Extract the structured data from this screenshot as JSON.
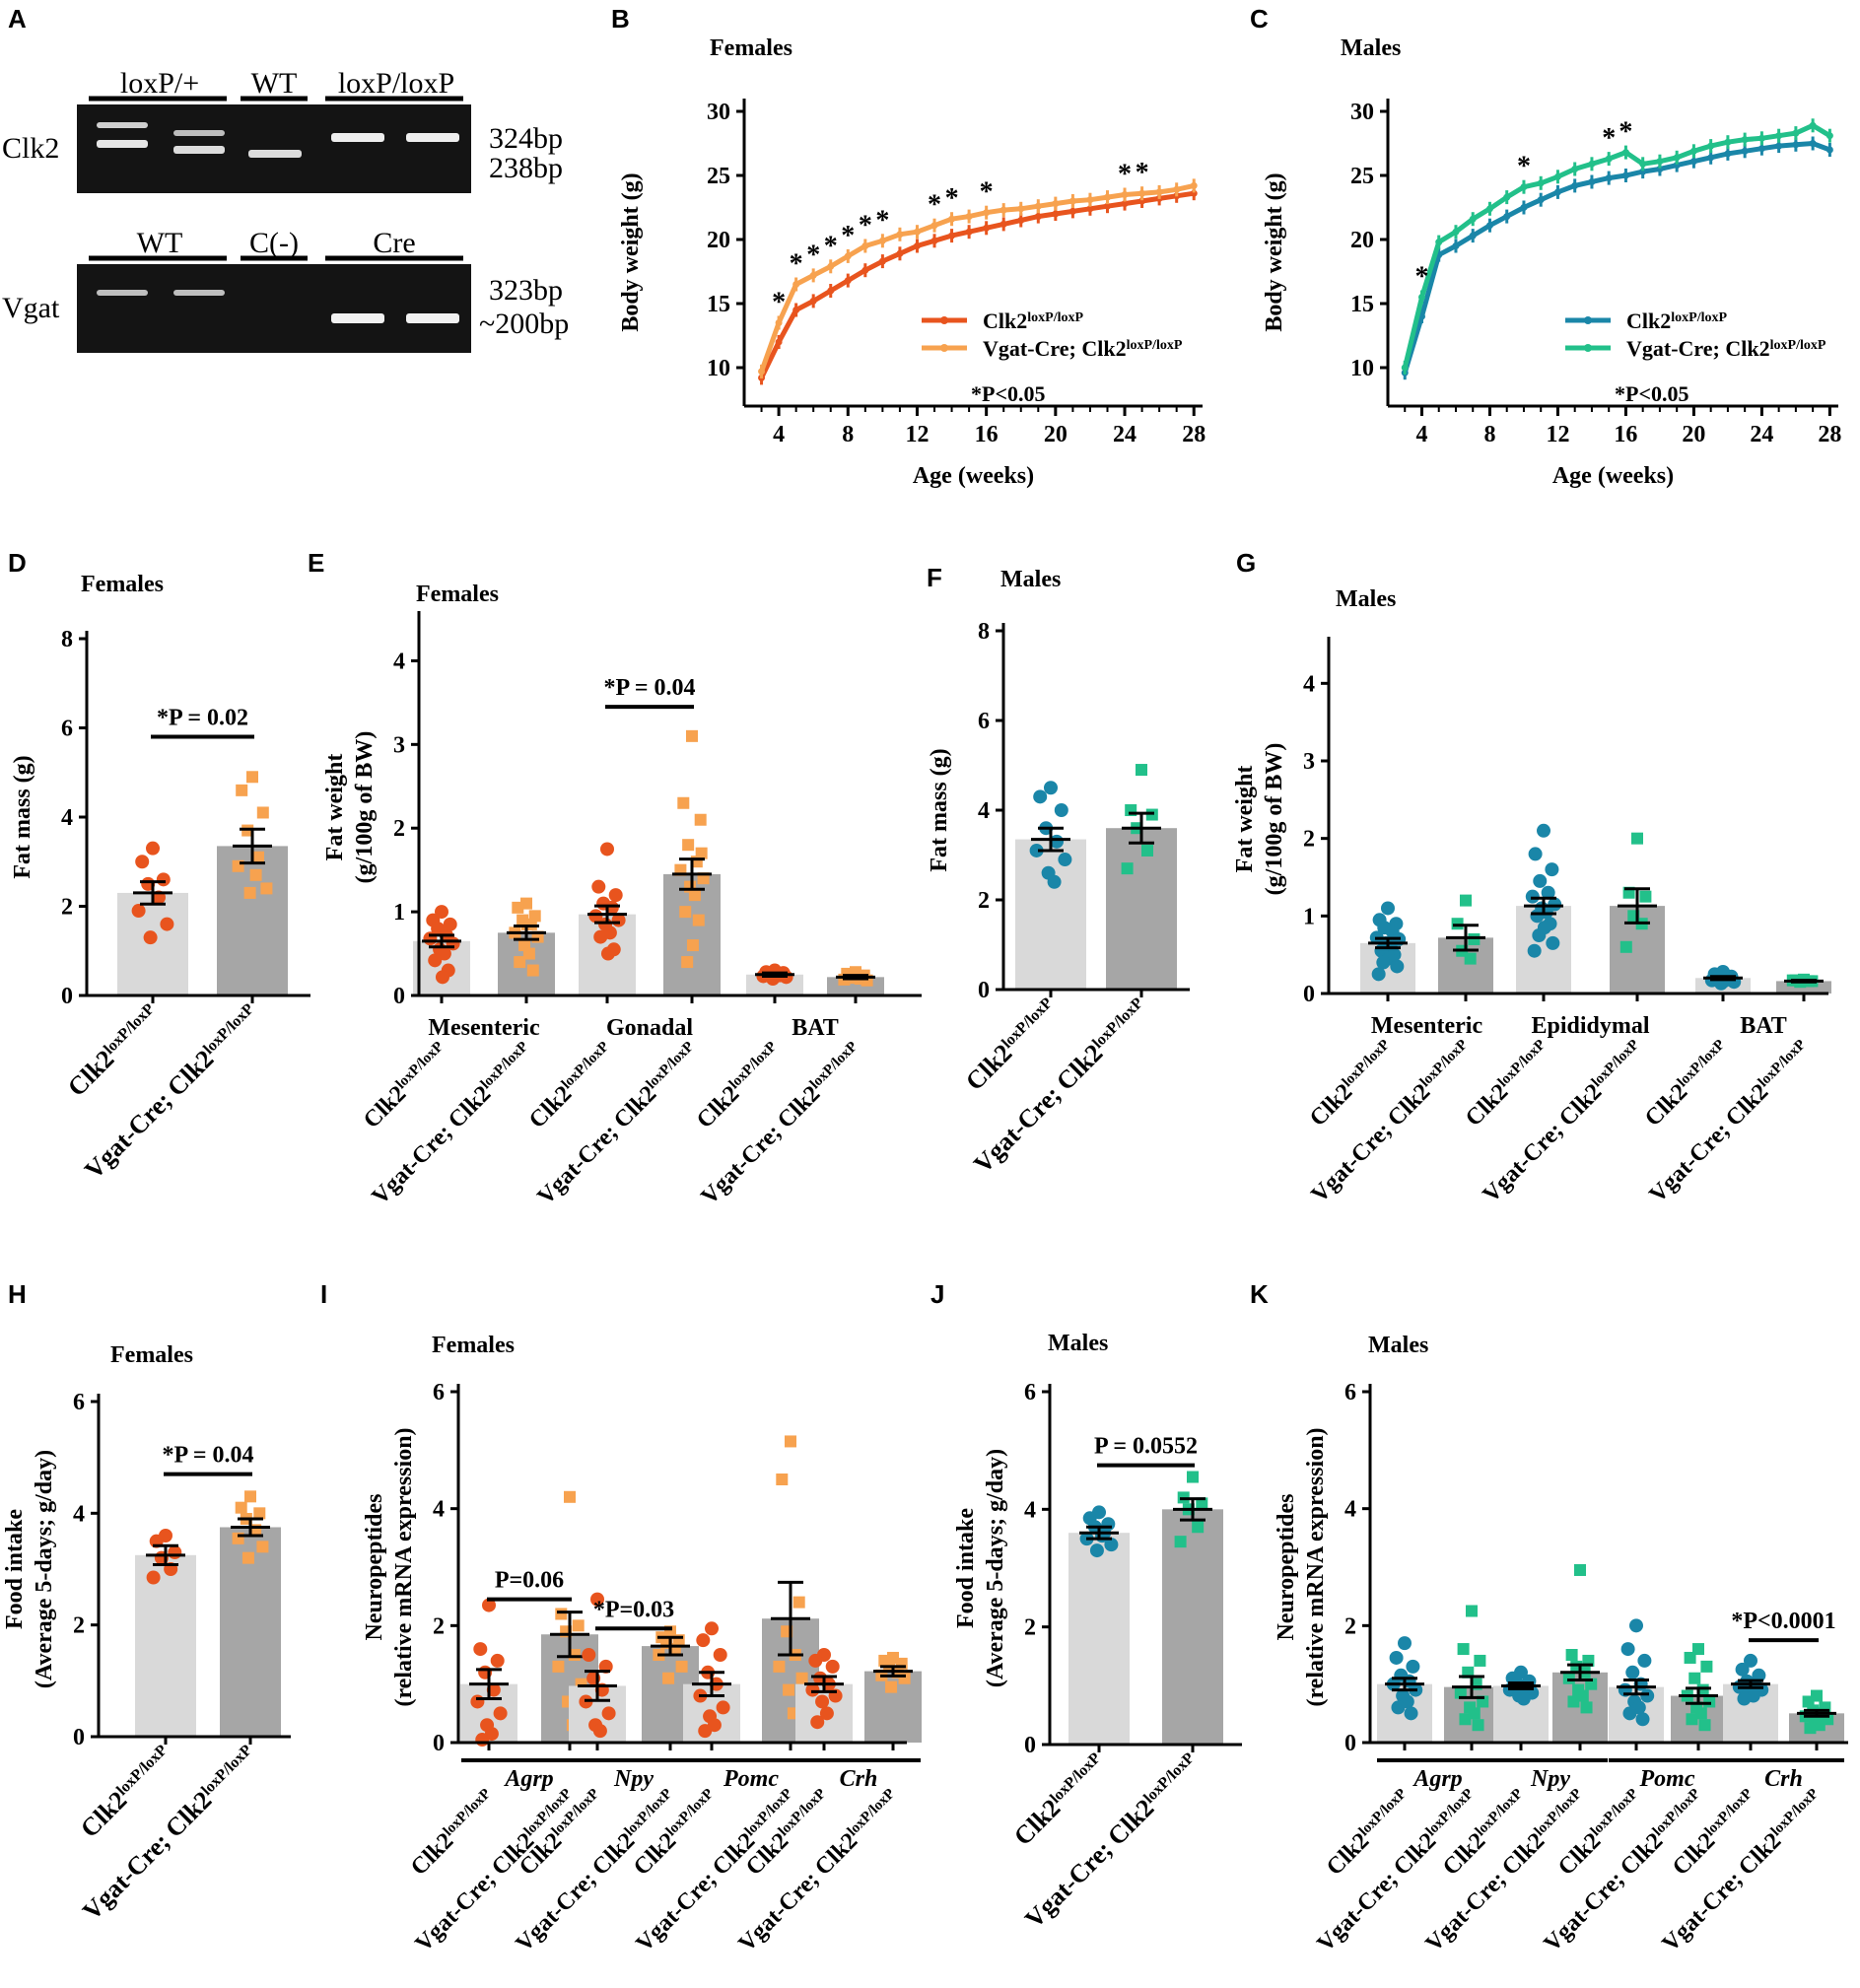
{
  "colors": {
    "female_control": "#E8541E",
    "female_ko": "#F7A24F",
    "male_control": "#1A86A8",
    "male_ko": "#22C08A",
    "bar_control": "#D9D9D9",
    "bar_ko": "#A6A6A6",
    "axis": "#000000"
  },
  "genotypes": {
    "control": "Clk2",
    "ko_prefix": "Vgat-Cre; Clk2",
    "sup": "loxP/loxP"
  },
  "panelA": {
    "label": "A",
    "gel1": {
      "row_label": "Clk2",
      "groups": [
        "loxP/+",
        "WT",
        "loxP/loxP"
      ],
      "sizes": [
        "324bp",
        "238bp"
      ]
    },
    "gel2": {
      "row_label": "Vgat",
      "groups": [
        "WT",
        "C(-)",
        "Cre"
      ],
      "sizes": [
        "323bp",
        "~200bp"
      ]
    }
  },
  "chart_data": [
    {
      "panel": "B",
      "type": "line",
      "title": "Females",
      "xlabel": "Age (weeks)",
      "ylabel": "Body weight (g)",
      "xlim": [
        2,
        28.5
      ],
      "ylim": [
        7,
        31
      ],
      "xticks": [
        4,
        8,
        12,
        16,
        20,
        24,
        28
      ],
      "yticks": [
        10,
        15,
        20,
        25,
        30
      ],
      "x": [
        3,
        4,
        5,
        6,
        7,
        8,
        9,
        10,
        11,
        12,
        13,
        14,
        15,
        16,
        17,
        18,
        19,
        20,
        21,
        22,
        23,
        24,
        25,
        26,
        27,
        28
      ],
      "series": [
        {
          "name": "Clk2 loxP/loxP",
          "values": [
            9.2,
            12.0,
            14.5,
            15.2,
            16.0,
            16.8,
            17.6,
            18.3,
            18.9,
            19.5,
            19.9,
            20.3,
            20.6,
            20.9,
            21.2,
            21.5,
            21.8,
            22.0,
            22.2,
            22.4,
            22.6,
            22.8,
            23.0,
            23.2,
            23.4,
            23.6
          ]
        },
        {
          "name": "Vgat-Cre; Clk2 loxP/loxP",
          "values": [
            9.7,
            13.5,
            16.5,
            17.2,
            17.9,
            18.7,
            19.5,
            19.9,
            20.4,
            20.6,
            21.1,
            21.6,
            21.8,
            22.1,
            22.3,
            22.4,
            22.6,
            22.8,
            23.0,
            23.1,
            23.3,
            23.5,
            23.6,
            23.7,
            23.9,
            24.2
          ]
        }
      ],
      "significance": {
        "symbol": "*",
        "x": [
          4,
          5,
          6,
          7,
          8,
          9,
          10,
          13,
          14,
          16,
          24,
          25
        ]
      },
      "annotation": "*P<0.05"
    },
    {
      "panel": "C",
      "type": "line",
      "title": "Males",
      "xlabel": "Age (weeks)",
      "ylabel": "Body weight (g)",
      "xlim": [
        2,
        28.5
      ],
      "ylim": [
        7,
        31
      ],
      "xticks": [
        4,
        8,
        12,
        16,
        20,
        24,
        28
      ],
      "yticks": [
        10,
        15,
        20,
        25,
        30
      ],
      "x": [
        3,
        4,
        5,
        6,
        7,
        8,
        9,
        10,
        11,
        12,
        13,
        14,
        15,
        16,
        17,
        18,
        19,
        20,
        21,
        22,
        23,
        24,
        25,
        26,
        27,
        28
      ],
      "series": [
        {
          "name": "Clk2 loxP/loxP",
          "values": [
            9.6,
            14.0,
            18.8,
            19.5,
            20.3,
            21.1,
            21.8,
            22.5,
            23.1,
            23.7,
            24.2,
            24.5,
            24.8,
            25.0,
            25.3,
            25.5,
            25.8,
            26.1,
            26.4,
            26.7,
            26.9,
            27.1,
            27.3,
            27.4,
            27.5,
            27.0
          ]
        },
        {
          "name": "Vgat-Cre; Clk2 loxP/loxP",
          "values": [
            10.0,
            15.5,
            19.8,
            20.6,
            21.6,
            22.4,
            23.3,
            24.1,
            24.4,
            24.9,
            25.5,
            25.9,
            26.3,
            26.8,
            25.9,
            26.1,
            26.4,
            26.9,
            27.3,
            27.6,
            27.8,
            27.9,
            28.1,
            28.3,
            28.9,
            28.1
          ]
        }
      ],
      "significance": {
        "symbol": "*",
        "x": [
          4,
          10,
          15,
          16
        ]
      },
      "annotation": "*P<0.05"
    },
    {
      "panel": "D",
      "type": "bar",
      "title": "Females",
      "ylabel": "Fat mass (g)",
      "ylim": [
        0,
        8
      ],
      "yticks": [
        0,
        2,
        4,
        6,
        8
      ],
      "bars": [
        {
          "genotype": "control",
          "mean": 2.3,
          "sem": 0.25,
          "points": [
            3.3,
            3.0,
            2.6,
            2.5,
            2.2,
            1.9,
            1.6,
            1.3
          ]
        },
        {
          "genotype": "ko",
          "mean": 3.35,
          "sem": 0.38,
          "points": [
            4.9,
            4.6,
            4.1,
            3.7,
            3.1,
            2.9,
            2.4,
            2.3,
            2.7
          ]
        }
      ],
      "comparisons": [
        {
          "from": 0,
          "to": 1,
          "y": 5.8,
          "label": "*P = 0.02"
        }
      ]
    },
    {
      "panel": "E",
      "type": "bar",
      "title": "Females",
      "ylabel": "Fat weight",
      "ylabel2": "(g/100g of BW)",
      "ylim": [
        0,
        4.5
      ],
      "yticks": [
        0,
        1,
        2,
        3,
        4
      ],
      "groups": [
        "Mesenteric",
        "Gonadal",
        "BAT"
      ],
      "bars": [
        {
          "genotype": "control",
          "group": 0,
          "mean": 0.65,
          "sem": 0.07,
          "points": [
            1.0,
            0.9,
            0.85,
            0.8,
            0.72,
            0.68,
            0.62,
            0.55,
            0.5,
            0.42,
            0.3,
            0.22
          ]
        },
        {
          "genotype": "ko",
          "group": 0,
          "mean": 0.75,
          "sem": 0.08,
          "points": [
            1.1,
            1.05,
            0.95,
            0.9,
            0.85,
            0.75,
            0.7,
            0.6,
            0.5,
            0.4,
            0.3,
            0.85
          ]
        },
        {
          "genotype": "control",
          "group": 1,
          "mean": 0.97,
          "sem": 0.1,
          "points": [
            1.75,
            1.3,
            1.2,
            1.1,
            1.05,
            0.95,
            0.9,
            0.85,
            0.75,
            0.7,
            0.55,
            0.5
          ]
        },
        {
          "genotype": "ko",
          "group": 1,
          "mean": 1.45,
          "sem": 0.18,
          "points": [
            3.1,
            2.3,
            2.1,
            1.8,
            1.6,
            1.5,
            1.4,
            1.3,
            1.2,
            1.0,
            0.9,
            0.6,
            0.4,
            1.7
          ]
        },
        {
          "genotype": "control",
          "group": 2,
          "mean": 0.25,
          "sem": 0.02,
          "points": [
            0.3,
            0.28,
            0.27,
            0.25,
            0.24,
            0.23,
            0.22,
            0.2,
            0.26
          ]
        },
        {
          "genotype": "ko",
          "group": 2,
          "mean": 0.22,
          "sem": 0.02,
          "points": [
            0.28,
            0.26,
            0.24,
            0.22,
            0.2,
            0.19,
            0.18,
            0.25,
            0.23,
            0.21
          ]
        }
      ],
      "comparisons": [
        {
          "from": 2,
          "to": 3,
          "y": 3.45,
          "label": "*P = 0.04"
        }
      ]
    },
    {
      "panel": "F",
      "type": "bar",
      "title": "Males",
      "ylabel": "Fat mass (g)",
      "ylim": [
        0,
        8
      ],
      "yticks": [
        0,
        2,
        4,
        6,
        8
      ],
      "bars": [
        {
          "genotype": "control",
          "mean": 3.35,
          "sem": 0.25,
          "points": [
            4.5,
            4.3,
            4.0,
            3.6,
            3.3,
            3.1,
            2.9,
            2.6,
            2.4
          ]
        },
        {
          "genotype": "ko",
          "mean": 3.6,
          "sem": 0.33,
          "points": [
            4.9,
            4.0,
            3.9,
            3.6,
            3.1,
            2.7
          ]
        }
      ],
      "comparisons": []
    },
    {
      "panel": "G",
      "type": "bar",
      "title": "Males",
      "ylabel": "Fat weight",
      "ylabel2": "(g/100g of BW)",
      "ylim": [
        0,
        4.5
      ],
      "yticks": [
        0,
        1,
        2,
        3,
        4
      ],
      "groups": [
        "Mesenteric",
        "Epididymal",
        "BAT"
      ],
      "bars": [
        {
          "genotype": "control",
          "group": 0,
          "mean": 0.65,
          "sem": 0.06,
          "points": [
            1.1,
            0.95,
            0.9,
            0.85,
            0.8,
            0.72,
            0.7,
            0.65,
            0.6,
            0.55,
            0.5,
            0.45,
            0.4,
            0.35,
            0.25
          ]
        },
        {
          "genotype": "ko",
          "group": 0,
          "mean": 0.72,
          "sem": 0.16,
          "points": [
            1.2,
            0.9,
            0.7,
            0.55,
            0.45
          ]
        },
        {
          "genotype": "control",
          "group": 1,
          "mean": 1.13,
          "sem": 0.1,
          "points": [
            2.1,
            1.8,
            1.6,
            1.45,
            1.3,
            1.25,
            1.15,
            1.1,
            1.05,
            1.0,
            0.9,
            0.85,
            0.75,
            0.65,
            0.55
          ]
        },
        {
          "genotype": "ko",
          "group": 1,
          "mean": 1.13,
          "sem": 0.22,
          "points": [
            2.0,
            1.3,
            1.25,
            1.0,
            0.9,
            0.6
          ]
        },
        {
          "genotype": "control",
          "group": 2,
          "mean": 0.2,
          "sem": 0.02,
          "points": [
            0.28,
            0.25,
            0.22,
            0.2,
            0.19,
            0.17,
            0.15,
            0.13,
            0.2,
            0.24,
            0.18,
            0.16
          ]
        },
        {
          "genotype": "ko",
          "group": 2,
          "mean": 0.16,
          "sem": 0.01,
          "points": [
            0.18,
            0.17,
            0.16,
            0.15,
            0.16,
            0.17
          ]
        }
      ],
      "comparisons": []
    },
    {
      "panel": "H",
      "type": "bar",
      "title": "Females",
      "ylabel": "Food intake",
      "ylabel2": "(Average 5-days; g/day)",
      "ylim": [
        0,
        6
      ],
      "yticks": [
        0,
        2,
        4,
        6
      ],
      "bars": [
        {
          "genotype": "control",
          "mean": 3.25,
          "sem": 0.17,
          "points": [
            3.6,
            3.5,
            3.3,
            3.2,
            3.0,
            2.85
          ]
        },
        {
          "genotype": "ko",
          "mean": 3.75,
          "sem": 0.15,
          "points": [
            4.3,
            4.1,
            4.0,
            3.9,
            3.7,
            3.55,
            3.4,
            3.2
          ]
        }
      ],
      "comparisons": [
        {
          "from": 0,
          "to": 1,
          "y": 4.7,
          "label": "*P = 0.04"
        }
      ]
    },
    {
      "panel": "I",
      "type": "bar",
      "title": "Females",
      "ylabel": "Neuropeptides",
      "ylabel2": "(relative mRNA expression)",
      "ylim": [
        0,
        6
      ],
      "yticks": [
        0,
        2,
        4,
        6
      ],
      "groups": [
        "Agrp",
        "Npy",
        "Pomc",
        "Crh"
      ],
      "bars": [
        {
          "genotype": "control",
          "group": 0,
          "mean": 1.0,
          "sem": 0.25,
          "points": [
            2.35,
            1.6,
            1.4,
            1.2,
            0.9,
            0.7,
            0.5,
            0.3,
            0.15,
            0.05
          ]
        },
        {
          "genotype": "ko",
          "group": 0,
          "mean": 1.85,
          "sem": 0.38,
          "points": [
            4.2,
            2.2,
            2.0,
            1.9,
            1.5,
            1.3,
            1.0,
            0.7,
            0.3
          ]
        },
        {
          "genotype": "control",
          "group": 1,
          "mean": 0.97,
          "sem": 0.25,
          "points": [
            2.45,
            1.5,
            1.3,
            1.1,
            0.9,
            0.7,
            0.5,
            0.3,
            0.2
          ]
        },
        {
          "genotype": "ko",
          "group": 1,
          "mean": 1.65,
          "sem": 0.15,
          "points": [
            1.9,
            1.8,
            1.75,
            1.7,
            1.6,
            1.5,
            1.3,
            1.1
          ]
        },
        {
          "genotype": "control",
          "group": 2,
          "mean": 1.0,
          "sem": 0.2,
          "points": [
            1.95,
            1.75,
            1.5,
            1.2,
            1.0,
            0.8,
            0.6,
            0.45,
            0.3,
            0.2
          ]
        },
        {
          "genotype": "ko",
          "group": 2,
          "mean": 2.12,
          "sem": 0.62,
          "points": [
            5.15,
            4.5,
            2.4,
            1.9,
            1.5,
            1.3,
            1.1,
            0.9,
            0.5
          ]
        },
        {
          "genotype": "control",
          "group": 3,
          "mean": 1.0,
          "sem": 0.13,
          "points": [
            1.5,
            1.4,
            1.3,
            1.1,
            1.0,
            0.9,
            0.8,
            0.7,
            0.5,
            0.35
          ]
        },
        {
          "genotype": "ko",
          "group": 3,
          "mean": 1.22,
          "sem": 0.08,
          "points": [
            1.45,
            1.4,
            1.35,
            1.3,
            1.2,
            1.15,
            1.1,
            0.95
          ]
        }
      ],
      "comparisons": [
        {
          "from": 0,
          "to": 1,
          "y": 2.45,
          "label": "P=0.06"
        },
        {
          "from": 2,
          "to": 3,
          "y": 1.95,
          "label": "*P=0.03"
        }
      ]
    },
    {
      "panel": "J",
      "type": "bar",
      "title": "Males",
      "ylabel": "Food intake",
      "ylabel2": "(Average 5-days; g/day)",
      "ylim": [
        0,
        6
      ],
      "yticks": [
        0,
        2,
        4,
        6
      ],
      "bars": [
        {
          "genotype": "control",
          "mean": 3.6,
          "sem": 0.1,
          "points": [
            3.95,
            3.85,
            3.75,
            3.7,
            3.6,
            3.5,
            3.4,
            3.3,
            3.55
          ]
        },
        {
          "genotype": "ko",
          "mean": 4.0,
          "sem": 0.18,
          "points": [
            4.55,
            4.2,
            4.1,
            4.0,
            3.7,
            3.45
          ]
        }
      ],
      "comparisons": [
        {
          "from": 0,
          "to": 1,
          "y": 4.75,
          "label": "P = 0.0552"
        }
      ]
    },
    {
      "panel": "K",
      "type": "bar",
      "title": "Males",
      "ylabel": "Neuropeptides",
      "ylabel2": "(relative mRNA expression)",
      "ylim": [
        0,
        6
      ],
      "yticks": [
        0,
        2,
        4,
        6
      ],
      "groups": [
        "Agrp",
        "Npy",
        "Pomc",
        "Crh"
      ],
      "bars": [
        {
          "genotype": "control",
          "group": 0,
          "mean": 1.0,
          "sem": 0.1,
          "points": [
            1.7,
            1.45,
            1.3,
            1.15,
            1.05,
            1.0,
            0.9,
            0.8,
            0.7,
            0.6,
            0.5
          ]
        },
        {
          "genotype": "ko",
          "group": 0,
          "mean": 0.95,
          "sem": 0.18,
          "points": [
            2.25,
            1.6,
            1.4,
            1.2,
            1.0,
            0.85,
            0.7,
            0.6,
            0.5,
            0.4,
            0.3
          ]
        },
        {
          "genotype": "control",
          "group": 1,
          "mean": 0.97,
          "sem": 0.05,
          "points": [
            1.2,
            1.1,
            1.05,
            1.0,
            0.95,
            0.9,
            0.85,
            0.8,
            0.75
          ]
        },
        {
          "genotype": "ko",
          "group": 1,
          "mean": 1.2,
          "sem": 0.13,
          "points": [
            2.95,
            1.5,
            1.4,
            1.3,
            1.2,
            1.1,
            1.0,
            0.9,
            0.8,
            0.7,
            0.6
          ]
        },
        {
          "genotype": "control",
          "group": 2,
          "mean": 0.95,
          "sem": 0.12,
          "points": [
            2.0,
            1.6,
            1.4,
            1.2,
            1.0,
            0.9,
            0.8,
            0.7,
            0.6,
            0.5,
            0.4
          ]
        },
        {
          "genotype": "ko",
          "group": 2,
          "mean": 0.8,
          "sem": 0.13,
          "points": [
            1.6,
            1.45,
            1.3,
            1.1,
            0.9,
            0.8,
            0.7,
            0.6,
            0.5,
            0.4,
            0.3
          ]
        },
        {
          "genotype": "control",
          "group": 3,
          "mean": 1.0,
          "sem": 0.06,
          "points": [
            1.4,
            1.25,
            1.15,
            1.05,
            1.0,
            0.95,
            0.9,
            0.85,
            0.8,
            0.75
          ]
        },
        {
          "genotype": "ko",
          "group": 3,
          "mean": 0.5,
          "sem": 0.05,
          "points": [
            0.8,
            0.7,
            0.6,
            0.55,
            0.5,
            0.45,
            0.4,
            0.35,
            0.3,
            0.25
          ]
        }
      ],
      "comparisons": [
        {
          "from": 6,
          "to": 7,
          "y": 1.75,
          "label": "*P<0.0001"
        }
      ]
    }
  ]
}
